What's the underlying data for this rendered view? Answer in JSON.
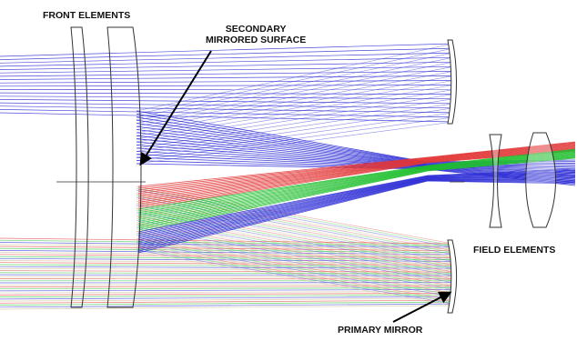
{
  "labels": {
    "front_elements": "FRONT ELEMENTS",
    "secondary_line1": "SECONDARY",
    "secondary_line2": "MIRRORED SURFACE",
    "field_elements": "FIELD ELEMENTS",
    "primary_mirror": "PRIMARY MIRROR"
  },
  "colors": {
    "ray_blue": "#2b2bd6",
    "ray_red": "#e23636",
    "ray_green": "#1fbf2e",
    "element_outline": "#333333",
    "label_text": "#111111",
    "arrow": "#000000"
  }
}
